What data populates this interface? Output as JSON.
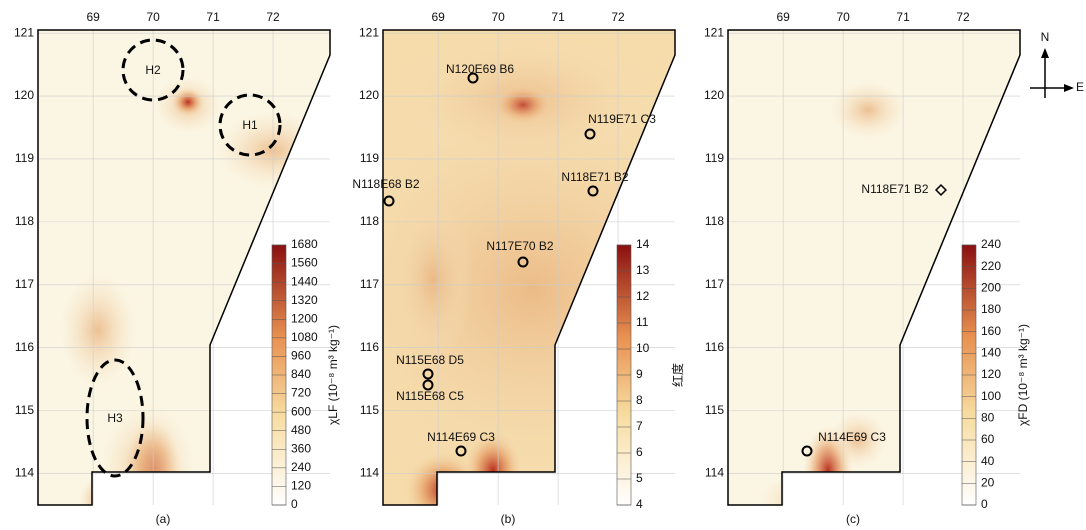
{
  "axes": {
    "xlim": [
      68.08,
      72.95
    ],
    "ylim": [
      113.5,
      121.05
    ],
    "xticks": [
      69,
      70,
      71,
      72
    ],
    "yticks": [
      114,
      115,
      116,
      117,
      118,
      119,
      120,
      121
    ]
  },
  "panels": [
    {
      "caption": "(a)",
      "colorbar": {
        "label": "χLF (10⁻⁸ m³ kg⁻¹)",
        "ticks": [
          0,
          120,
          240,
          360,
          480,
          600,
          720,
          840,
          960,
          1080,
          1200,
          1320,
          1440,
          1560,
          1680
        ]
      },
      "labels": [
        "H2",
        "H1",
        "H3"
      ]
    },
    {
      "caption": "(b)",
      "colorbar": {
        "label": "红度",
        "ticks": [
          4,
          5,
          6,
          7,
          8,
          9,
          10,
          11,
          12,
          13,
          14
        ]
      },
      "labels": [
        "N120E69 B6",
        "N119E71 C3",
        "N118E71 B2",
        "N118E68 B2",
        "N117E70 B2",
        "N115E68 D5",
        "N115E68 C5",
        "N114E69 C3"
      ]
    },
    {
      "caption": "(c)",
      "colorbar": {
        "label": "χFD (10⁻⁸ m³ kg⁻¹)",
        "ticks": [
          0,
          20,
          40,
          60,
          80,
          100,
          120,
          140,
          160,
          180,
          200,
          220,
          240
        ]
      },
      "labels": [
        "N118E71 B2",
        "N114E69 C3"
      ]
    }
  ],
  "compass": {
    "north": "N",
    "east": "E"
  }
}
